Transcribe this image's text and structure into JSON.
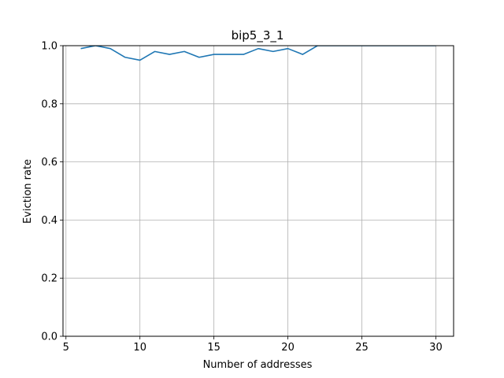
{
  "chart_data": {
    "type": "line",
    "title": "bip5_3_1",
    "xlabel": "Number of addresses",
    "ylabel": "Eviction rate",
    "xlim": [
      4.8,
      31.2
    ],
    "ylim": [
      0.0,
      1.0
    ],
    "xticks": [
      5,
      10,
      15,
      20,
      25,
      30
    ],
    "yticks": [
      0.0,
      0.2,
      0.4,
      0.6,
      0.8,
      1.0
    ],
    "grid": true,
    "series": [
      {
        "color": "#1f77b4",
        "x": [
          6,
          7,
          8,
          9,
          10,
          11,
          12,
          13,
          14,
          15,
          16,
          17,
          18,
          19,
          20,
          21,
          22,
          23,
          24,
          25,
          26,
          27,
          28,
          29,
          30
        ],
        "y": [
          0.99,
          1.0,
          0.99,
          0.96,
          0.95,
          0.98,
          0.97,
          0.98,
          0.96,
          0.97,
          0.97,
          0.97,
          0.99,
          0.98,
          0.99,
          0.97,
          1.0,
          1.0,
          1.0,
          1.0,
          1.0,
          1.0,
          1.0,
          1.0,
          1.0
        ]
      }
    ]
  }
}
